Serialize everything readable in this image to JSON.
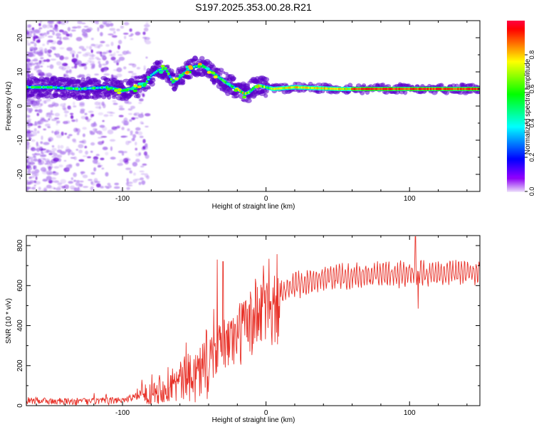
{
  "title": "S197.2025.353.00.28.R21",
  "chart_data": [
    {
      "type": "heatmap",
      "name": "spectrogram",
      "xlabel": "Height of straight line (km)",
      "ylabel": "Frequency (Hz)",
      "xlim": [
        -167,
        149
      ],
      "ylim": [
        -25,
        25
      ],
      "xticks": [
        -100,
        0,
        100
      ],
      "yticks": [
        -20,
        -10,
        0,
        10,
        20
      ],
      "colorbar": {
        "label": "Normalized spectral amplitude",
        "range": [
          0,
          1
        ],
        "ticks": [
          0.0,
          0.2,
          0.4,
          0.6,
          0.8
        ]
      },
      "ridge": {
        "x": [
          -167,
          -150,
          -130,
          -110,
          -100,
          -90,
          -85,
          -80,
          -75,
          -70,
          -65,
          -60,
          -55,
          -50,
          -45,
          -40,
          -35,
          -30,
          -25,
          -20,
          -15,
          -12,
          -8,
          -5,
          0,
          5,
          20,
          50,
          100,
          149
        ],
        "y": [
          5.5,
          5.5,
          5.0,
          5.5,
          4.5,
          5.5,
          6.0,
          9.0,
          10.5,
          11.0,
          7.0,
          8.5,
          10.5,
          11.5,
          12.0,
          10.5,
          9.0,
          7.5,
          6.0,
          5.0,
          3.5,
          4.0,
          5.5,
          6.0,
          5.5,
          5.0,
          5.5,
          5.0,
          5.0,
          5.0
        ]
      }
    },
    {
      "type": "line",
      "name": "snr",
      "color": "#e8332a",
      "xlabel": "Height of straight line (km)",
      "ylabel": "SNR (10 * v/v)",
      "xlim": [
        -167,
        149
      ],
      "ylim": [
        0,
        850
      ],
      "xticks": [
        -100,
        0,
        100
      ],
      "yticks": [
        0,
        200,
        400,
        600,
        800
      ],
      "envelope": {
        "x": [
          -167,
          -140,
          -110,
          -100,
          -90,
          -80,
          -70,
          -60,
          -50,
          -40,
          -30,
          -20,
          -10,
          0,
          10,
          20,
          30,
          40,
          60,
          80,
          100,
          120,
          149
        ],
        "y": [
          25,
          20,
          22,
          30,
          45,
          70,
          100,
          120,
          150,
          220,
          300,
          350,
          420,
          500,
          560,
          600,
          620,
          640,
          650,
          655,
          660,
          662,
          665
        ]
      },
      "spikes": [
        {
          "x": -34,
          "y": 730
        },
        {
          "x": -30,
          "y": 720
        },
        {
          "x": 104,
          "y": 845
        },
        {
          "x": 106,
          "y": 485
        }
      ]
    }
  ]
}
